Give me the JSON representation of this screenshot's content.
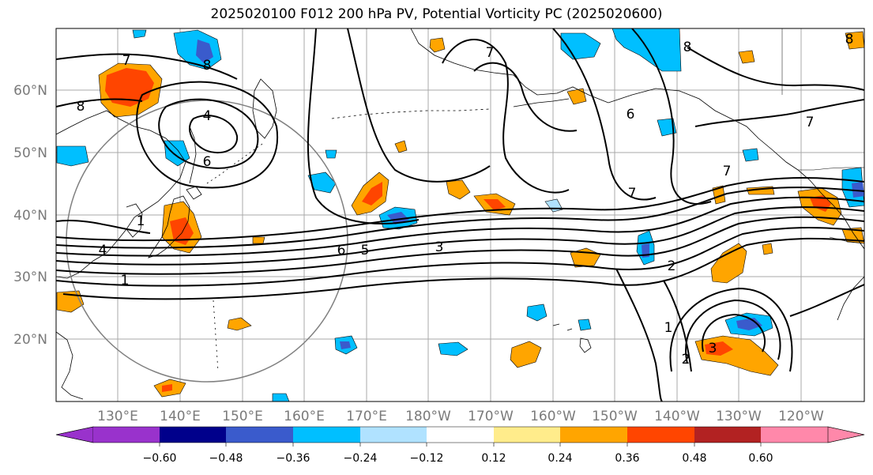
{
  "title": "2025020100 F012 200 hPa PV, Potential Vorticity PC (2025020600)",
  "colors": {
    "ocean": "#ffffff",
    "grid": "#a9a9a9",
    "coast": "#000000",
    "contour": "#000000",
    "circle": "#808080"
  },
  "lat_labels": [
    "60°N",
    "50°N",
    "40°N",
    "30°N",
    "20°N"
  ],
  "lon_labels": [
    "130°E",
    "140°E",
    "150°E",
    "160°E",
    "170°E",
    "180°W",
    "170°W",
    "160°W",
    "150°W",
    "140°W",
    "130°W",
    "120°W"
  ],
  "colorbar": {
    "colors": [
      "#9932cc",
      "#00008b",
      "#3a5bcc",
      "#00bfff",
      "#b0e2ff",
      "#ffffff",
      "#ffec8b",
      "#ffa500",
      "#ff4500",
      "#b22222",
      "#ff88aa"
    ],
    "ticks": [
      "−0.60",
      "−0.48",
      "−0.36",
      "−0.24",
      "−0.12",
      "0.12",
      "0.24",
      "0.36",
      "0.48",
      "0.60"
    ]
  },
  "contour_labels": [
    "7",
    "8",
    "4",
    "6",
    "8",
    "7",
    "6",
    "8",
    "7",
    "7",
    "7",
    "4",
    "1",
    "6",
    "5",
    "3",
    "2",
    "1",
    "2",
    "3",
    "1",
    "8"
  ]
}
